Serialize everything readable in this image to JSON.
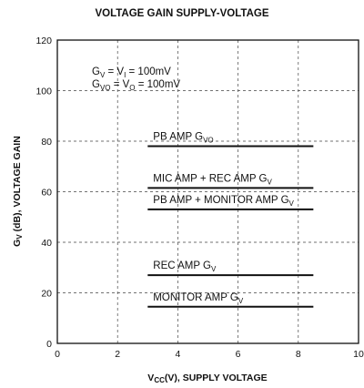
{
  "chart_data": {
    "type": "line",
    "title": "VOLTAGE GAIN SUPPLY-VOLTAGE",
    "ylabel": {
      "base": "G",
      "sub": "V",
      "rest": " (dB), VOLTAGE GAIN"
    },
    "xlabel": {
      "base": "V",
      "sub": "CC",
      "rest": "(V), SUPPLY VOLTAGE"
    },
    "xlim": [
      0,
      10
    ],
    "ylim": [
      0,
      120
    ],
    "xticks": [
      0,
      2,
      4,
      6,
      8,
      10
    ],
    "yticks": [
      0,
      20,
      40,
      60,
      80,
      100,
      120
    ],
    "grid": true,
    "conditions": [
      {
        "base": "G",
        "sub": "V",
        "rest": " = V",
        "sub2": "I",
        "rest2": " = 100mV"
      },
      {
        "base": "G",
        "sub": "VO",
        "rest": " = V",
        "sub2": "O",
        "rest2": " = 100mV"
      }
    ],
    "series": [
      {
        "name": "PB AMP G",
        "sub": "VO",
        "x": [
          3,
          8.5
        ],
        "y": [
          78,
          78
        ]
      },
      {
        "name": "MIC AMP + REC AMP G",
        "sub": "V",
        "x": [
          3,
          8.5
        ],
        "y": [
          61.5,
          61.5
        ]
      },
      {
        "name": "PB AMP + MONITOR AMP G",
        "sub": "V",
        "x": [
          3,
          8.5
        ],
        "y": [
          53,
          53
        ]
      },
      {
        "name": "REC AMP G",
        "sub": "V",
        "x": [
          3,
          8.5
        ],
        "y": [
          27,
          27
        ]
      },
      {
        "name": "MONITOR AMP G",
        "sub": "V",
        "x": [
          3,
          8.5
        ],
        "y": [
          14.5,
          14.5
        ]
      }
    ]
  }
}
